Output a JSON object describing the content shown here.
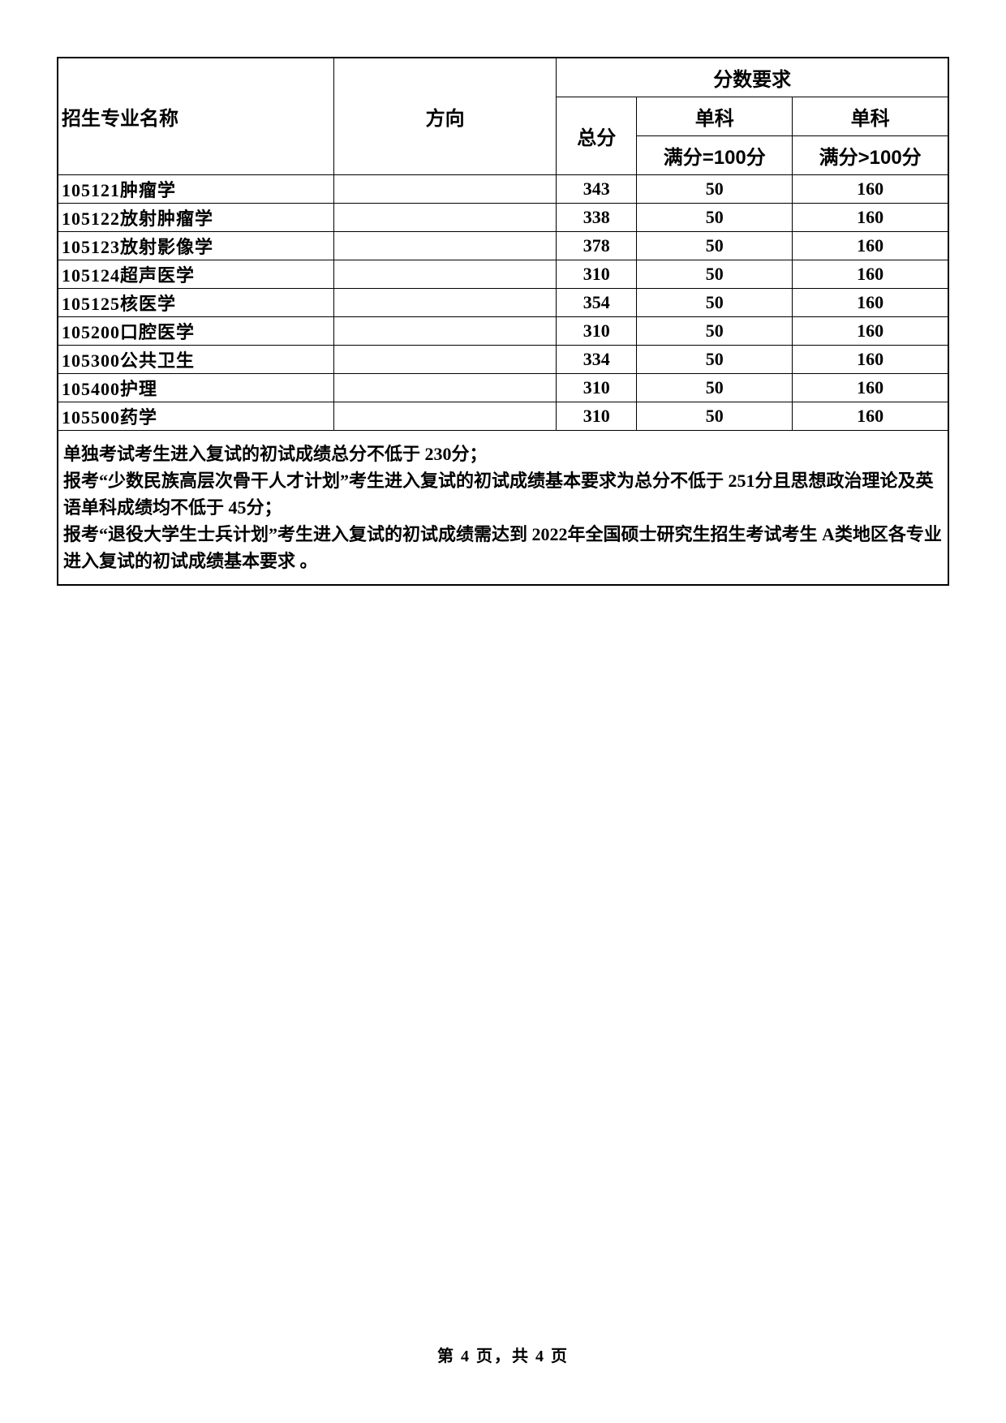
{
  "table": {
    "headers": {
      "major": "招生专业名称",
      "direction": "方向",
      "score_req": "分数要求",
      "total": "总分",
      "subject": "单科",
      "full_100": "满分=100分",
      "full_gt_100": "满分>100分"
    },
    "rows": [
      {
        "major": "105121肿瘤学",
        "direction": "",
        "total": "343",
        "sub1": "50",
        "sub2": "160"
      },
      {
        "major": "105122放射肿瘤学",
        "direction": "",
        "total": "338",
        "sub1": "50",
        "sub2": "160"
      },
      {
        "major": "105123放射影像学",
        "direction": "",
        "total": "378",
        "sub1": "50",
        "sub2": "160"
      },
      {
        "major": "105124超声医学",
        "direction": "",
        "total": "310",
        "sub1": "50",
        "sub2": "160"
      },
      {
        "major": "105125核医学",
        "direction": "",
        "total": "354",
        "sub1": "50",
        "sub2": "160"
      },
      {
        "major": "105200口腔医学",
        "direction": "",
        "total": "310",
        "sub1": "50",
        "sub2": "160"
      },
      {
        "major": "105300公共卫生",
        "direction": "",
        "total": "334",
        "sub1": "50",
        "sub2": "160"
      },
      {
        "major": "105400护理",
        "direction": "",
        "total": "310",
        "sub1": "50",
        "sub2": "160"
      },
      {
        "major": "105500药学",
        "direction": "",
        "total": "310",
        "sub1": "50",
        "sub2": "160"
      }
    ],
    "notes": "单独考试考生进入复试的初试成绩总分不低于 230分；\n报考“少数民族高层次骨干人才计划”考生进入复试的初试成绩基本要求为总分不低于 251分且思想政治理论及英语单科成绩均不低于 45分；\n报考“退役大学生士兵计划”考生进入复试的初试成绩需达到 2022年全国硕士研究生招生考试考生 A类地区各专业进入复试的初试成绩基本要求 。"
  },
  "footer": "第 4 页，共 4 页"
}
